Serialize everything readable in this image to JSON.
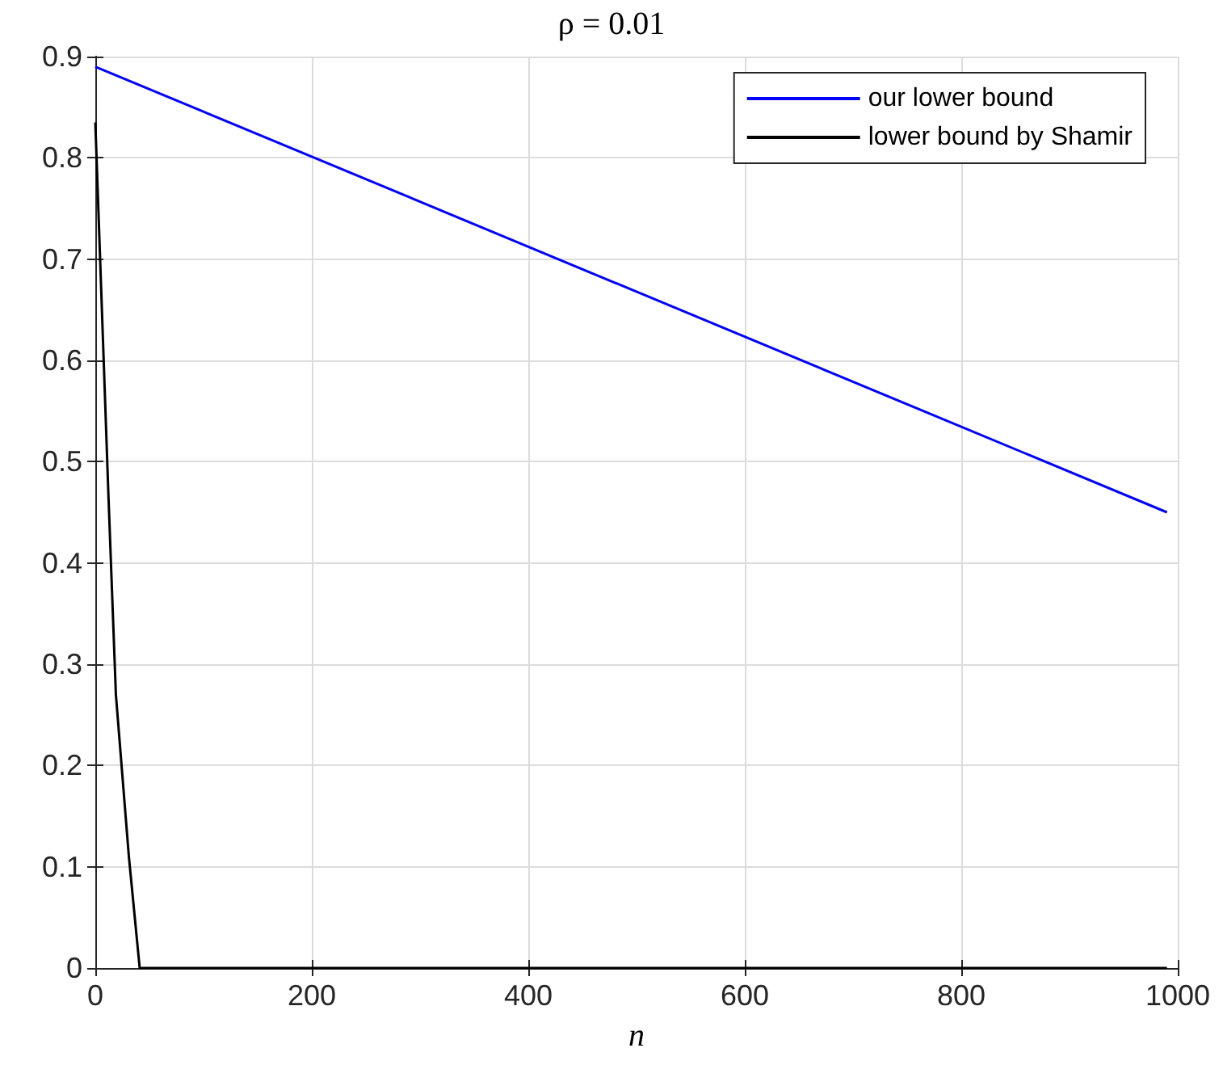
{
  "chart_data": {
    "type": "line",
    "title": "ρ = 0.01",
    "xlabel": "n",
    "series": [
      {
        "name": "our lower bound",
        "color": "#0000ff",
        "x": [
          0,
          990
        ],
        "values": [
          0.89,
          0.45
        ]
      },
      {
        "name": "lower bound by Shamir",
        "color": "#000000",
        "x": [
          0,
          12,
          19,
          31,
          41,
          990
        ],
        "values": [
          0.835,
          0.47,
          0.27,
          0.11,
          0,
          0
        ]
      }
    ],
    "xlim": [
      0,
      1000
    ],
    "xticks": [
      0,
      200,
      400,
      600,
      800,
      1000
    ],
    "ylim": [
      0,
      0.9
    ],
    "yticks": [
      0,
      0.1,
      0.2,
      0.3,
      0.4,
      0.5,
      0.6,
      0.7,
      0.8,
      0.9
    ],
    "grid": true,
    "legend": "top right",
    "marker": "none",
    "line_style": "solid"
  }
}
